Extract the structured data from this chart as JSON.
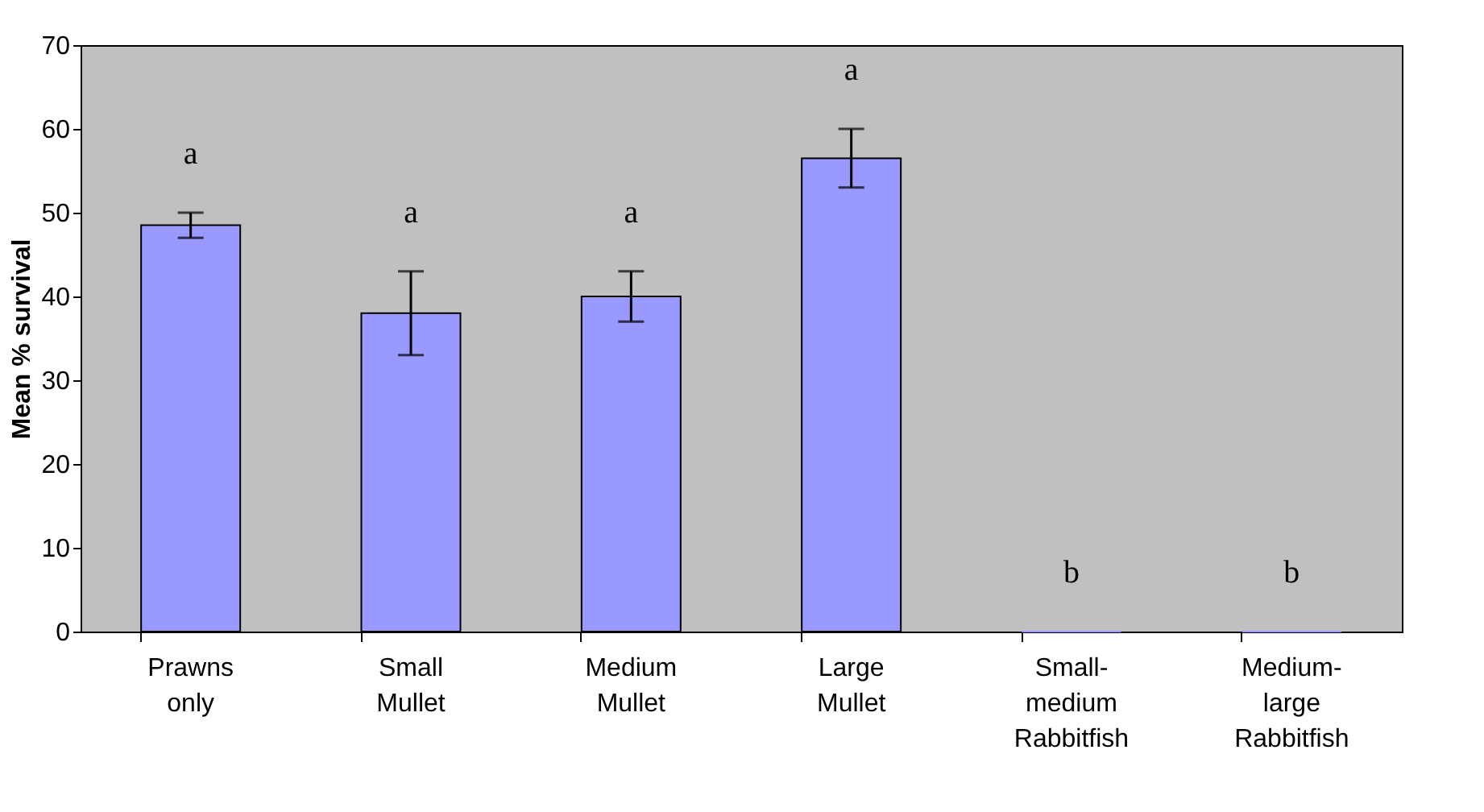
{
  "chart_data": {
    "type": "bar",
    "ylabel": "Mean % survival",
    "categories": [
      "Prawns only",
      "Small Mullet",
      "Medium Mullet",
      "Large Mullet",
      "Small-medium Rabbitfish",
      "Medium-large Rabbitfish"
    ],
    "values": [
      48.5,
      38,
      40,
      56.5,
      0,
      0
    ],
    "errors": [
      1.5,
      5,
      3,
      3.5,
      null,
      null
    ],
    "color": "#9999ff",
    "ylim": [
      0,
      70
    ],
    "yticks": [
      0,
      10,
      20,
      30,
      40,
      50,
      60,
      70
    ],
    "grid": false,
    "annotations": [
      "a",
      "a",
      "a",
      "a",
      "b",
      "b"
    ]
  }
}
